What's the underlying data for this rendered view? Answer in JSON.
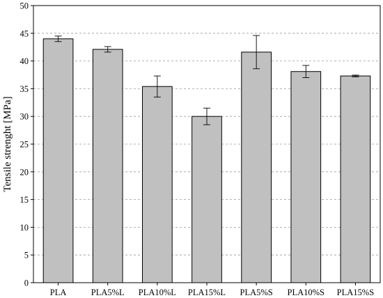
{
  "chart_data": {
    "type": "bar",
    "categories": [
      "PLA",
      "PLA5%L",
      "PLA10%L",
      "PLA15%L",
      "PLA5%S",
      "PLA10%S",
      "PLA15%S"
    ],
    "values": [
      44.0,
      42.1,
      35.4,
      30.0,
      41.6,
      38.1,
      37.3
    ],
    "errors": [
      0.5,
      0.5,
      1.9,
      1.5,
      3.0,
      1.1,
      0.15
    ],
    "title": "",
    "xlabel": "",
    "ylabel": "Tensile strenght [MPa]",
    "ylim": [
      0,
      50
    ],
    "yticks": [
      0,
      5,
      10,
      15,
      20,
      25,
      30,
      35,
      40,
      45,
      50
    ],
    "grid": "horizontal dashed",
    "colors": {
      "bar_fill": "#c0c0c0",
      "bar_stroke": "#000000",
      "grid": "#9a9a9a"
    }
  }
}
